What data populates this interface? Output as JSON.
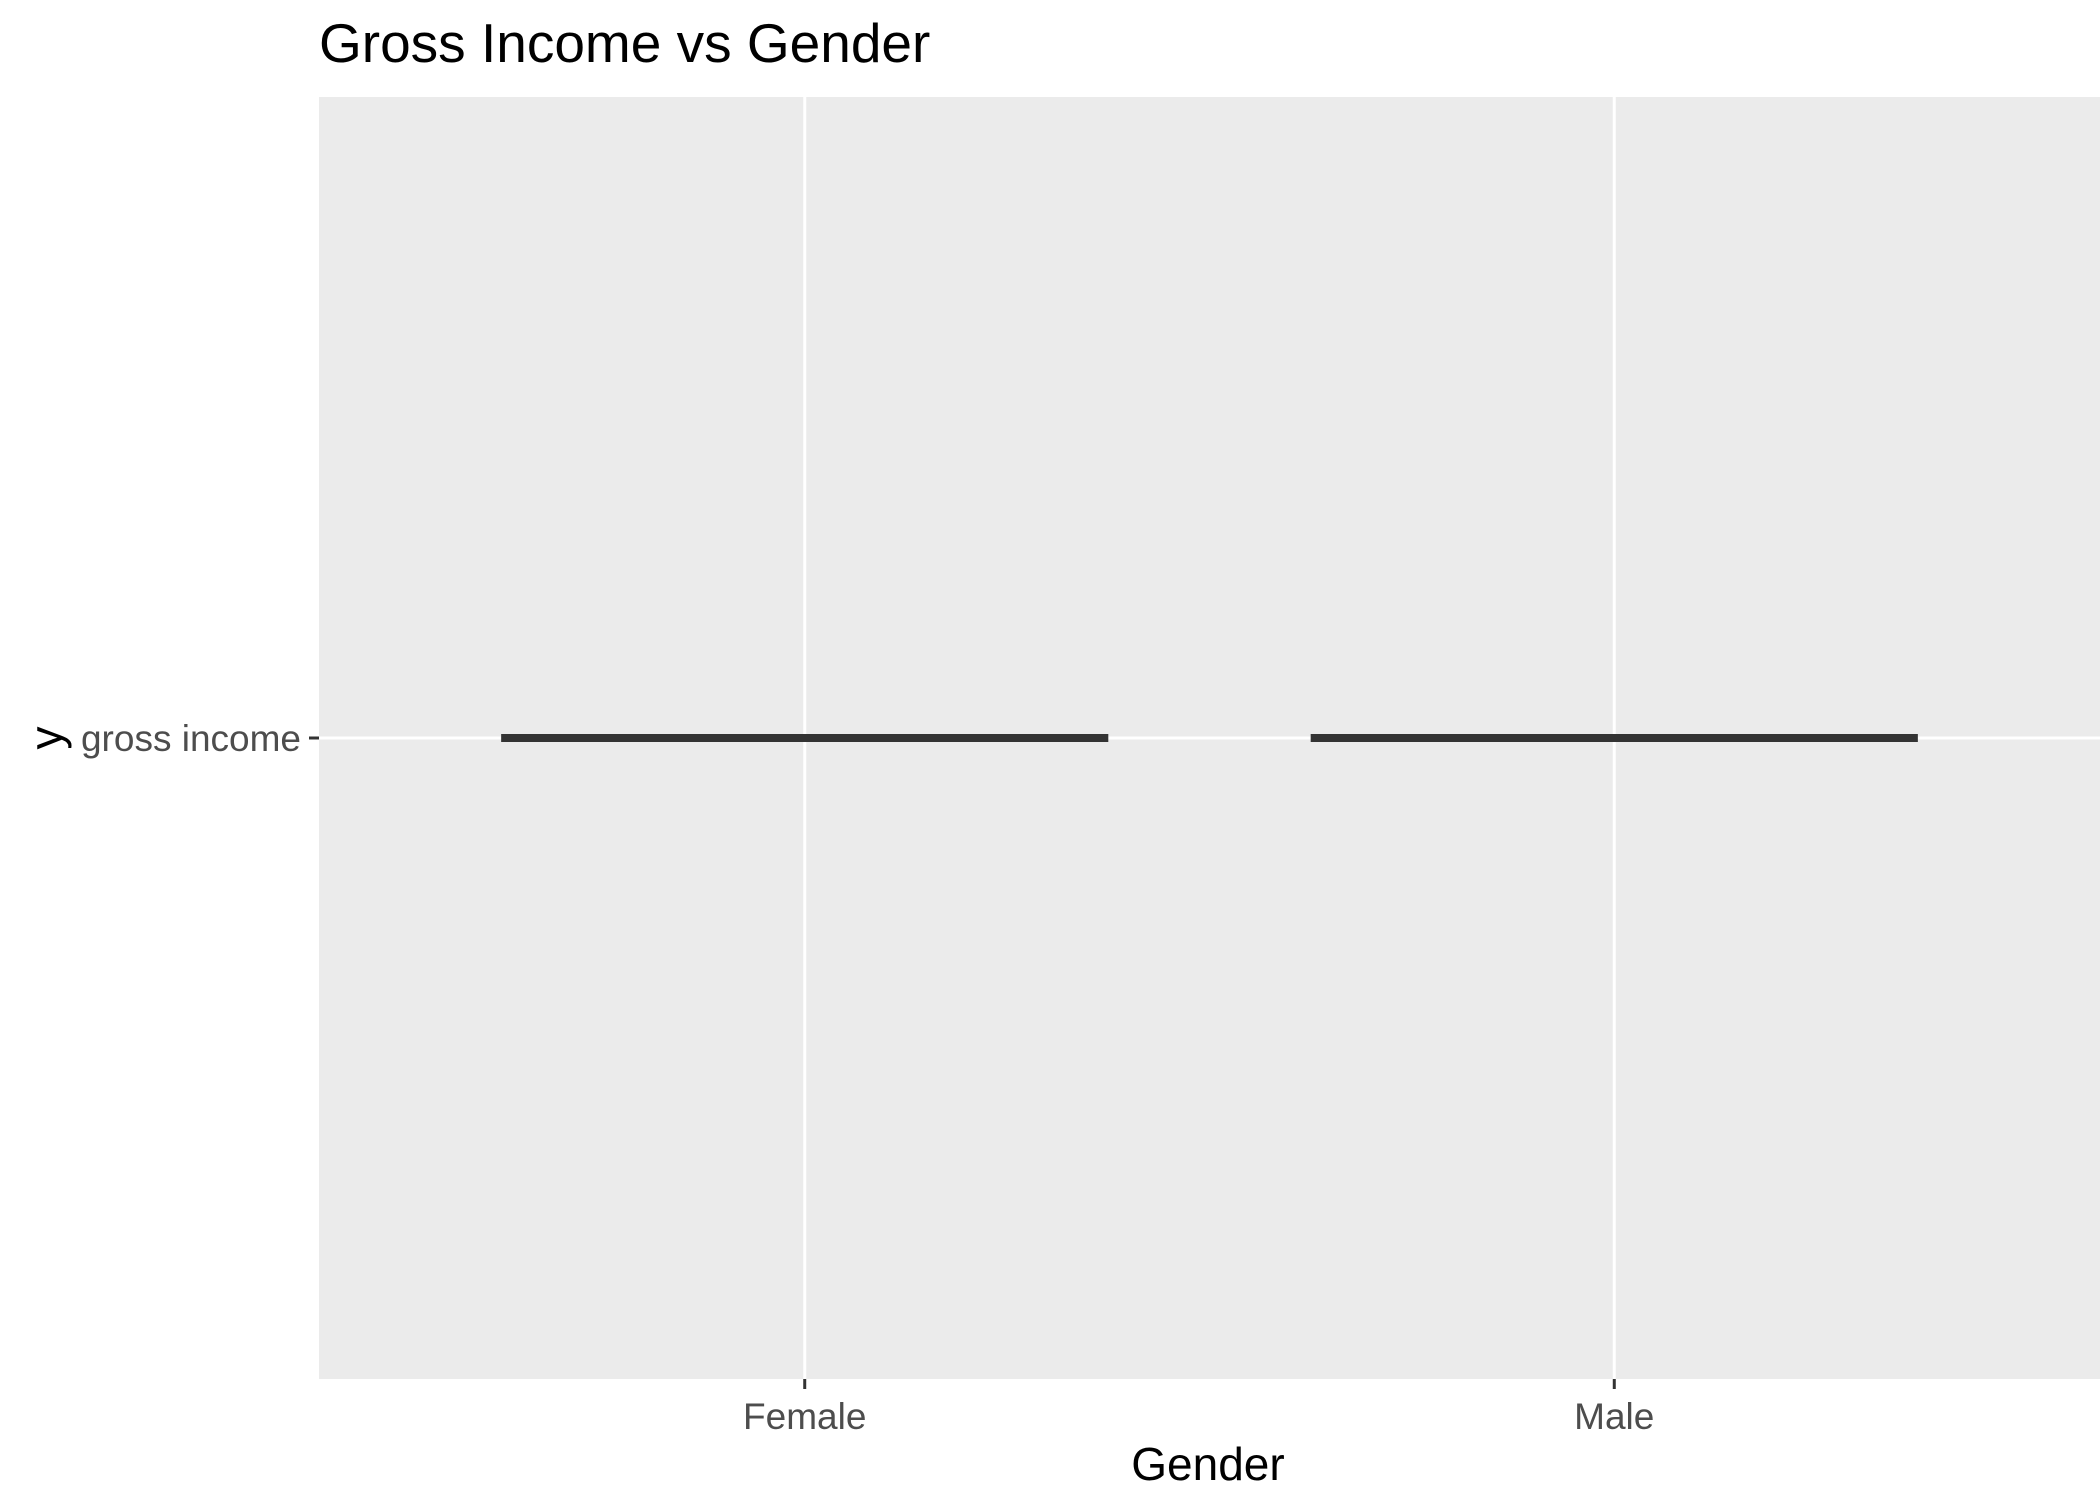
{
  "chart_data": {
    "type": "box",
    "title": "Gross Income vs Gender",
    "xlabel": "Gender",
    "ylabel": "y",
    "categories": [
      "Female",
      "Male"
    ],
    "y_tick_labels": [
      "gross income"
    ],
    "series": [
      {
        "values": [
          "gross income",
          "gross income"
        ]
      }
    ],
    "grid": true,
    "colors": {
      "panel_background": "#EBEBEB",
      "grid_line": "#FFFFFF",
      "box_line": "#333333",
      "tick_text": "#4D4D4D",
      "title_text": "#000000"
    }
  }
}
